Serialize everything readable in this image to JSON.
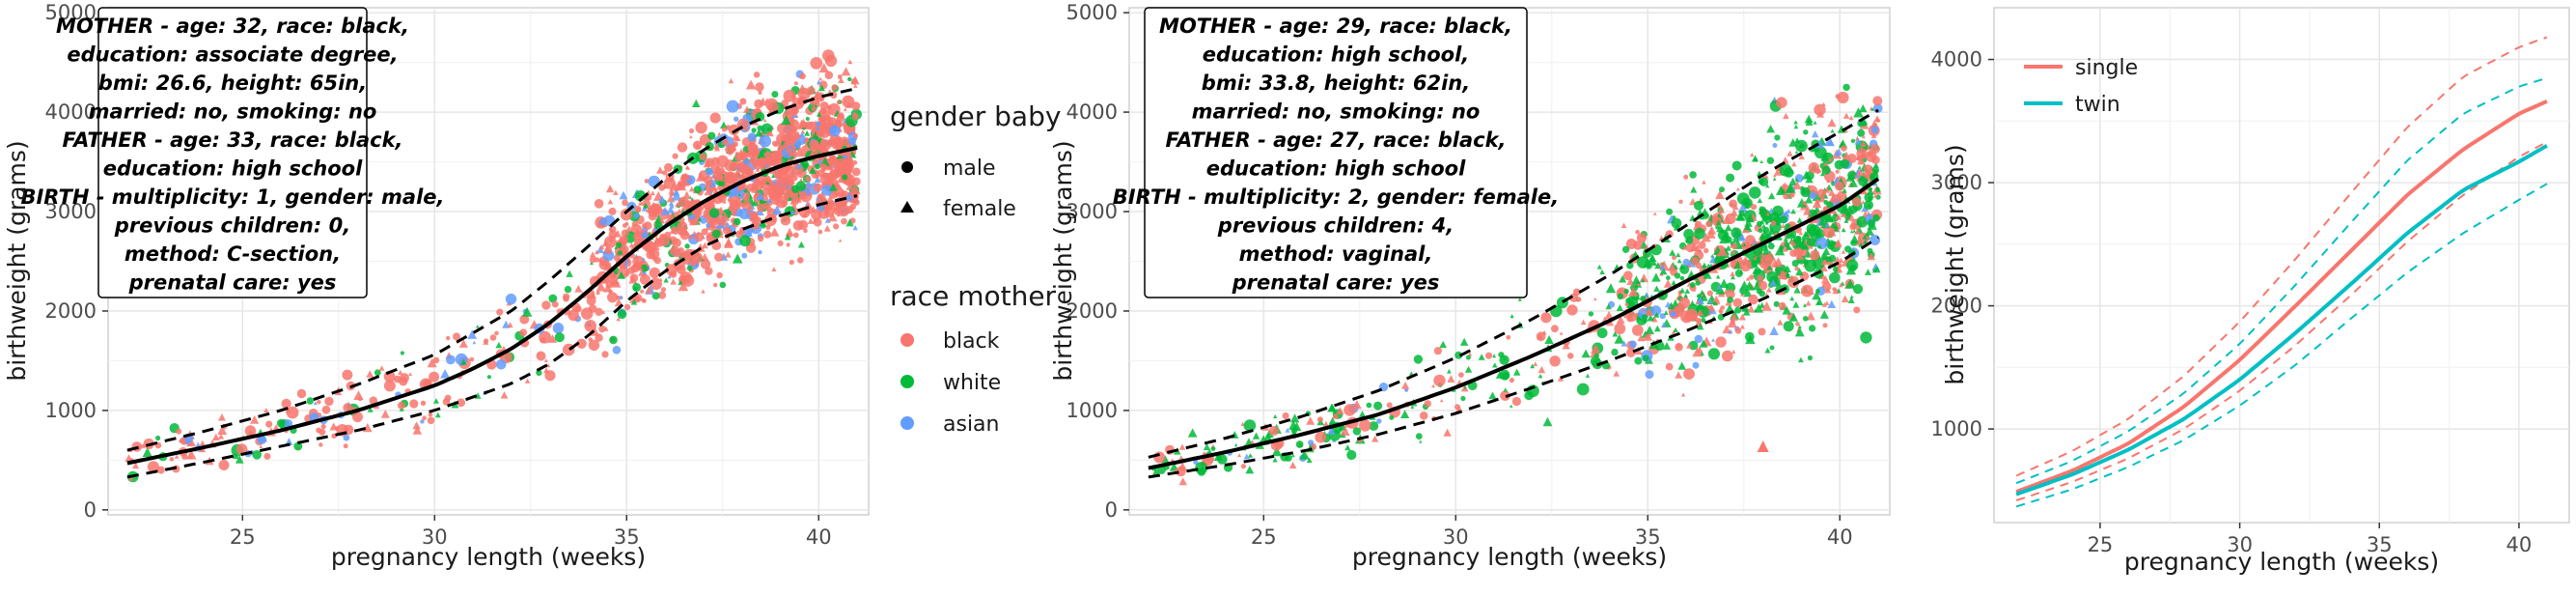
{
  "chart_data": [
    {
      "type": "scatter",
      "title": "",
      "xlabel": "pregnancy length (weeks)",
      "ylabel": "birthweight (grams)",
      "xlim": [
        21.5,
        41.3
      ],
      "ylim": [
        -50,
        5050
      ],
      "xticks": [
        25,
        30,
        35,
        40
      ],
      "yticks": [
        0,
        1000,
        2000,
        3000,
        4000,
        5000
      ],
      "grid": true,
      "annotation": [
        "MOTHER - age: 32, race: black,",
        "education: associate degree,",
        "bmi: 26.6, height: 65in,",
        "married: no, smoking: no",
        "FATHER - age: 33, race: black,",
        "education: high school",
        "BIRTH - multiplicity: 1, gender: male,",
        "previous children: 0,",
        "method: C-section,",
        "prenatal care: yes"
      ],
      "series": [
        {
          "style": "solid",
          "x": [
            22,
            24,
            26,
            28,
            30,
            31,
            32,
            33,
            34,
            35,
            36,
            37,
            38,
            39,
            40,
            41
          ],
          "values": [
            470,
            630,
            800,
            1000,
            1250,
            1420,
            1620,
            1880,
            2200,
            2550,
            2850,
            3100,
            3300,
            3460,
            3560,
            3640
          ]
        },
        {
          "style": "dashed",
          "x": [
            22,
            24,
            26,
            28,
            30,
            32,
            33,
            34,
            35,
            36,
            37,
            38,
            39,
            40,
            41
          ],
          "values": [
            600,
            790,
            1000,
            1260,
            1560,
            2000,
            2310,
            2650,
            3000,
            3330,
            3620,
            3850,
            4020,
            4150,
            4240
          ]
        },
        {
          "style": "dashed",
          "x": [
            22,
            24,
            26,
            28,
            30,
            32,
            33,
            34,
            35,
            36,
            37,
            38,
            39,
            40,
            41
          ],
          "values": [
            330,
            480,
            640,
            800,
            1000,
            1270,
            1470,
            1750,
            2100,
            2400,
            2650,
            2820,
            2960,
            3070,
            3160
          ]
        }
      ]
    },
    {
      "type": "scatter",
      "title": "",
      "xlabel": "pregnancy length (weeks)",
      "ylabel": "birthweight (grams)",
      "xlim": [
        21.5,
        41.3
      ],
      "ylim": [
        -50,
        5050
      ],
      "xticks": [
        25,
        30,
        35,
        40
      ],
      "yticks": [
        0,
        1000,
        2000,
        3000,
        4000,
        5000
      ],
      "grid": true,
      "annotation": [
        "MOTHER - age: 29, race: black,",
        "education: high school,",
        "bmi: 33.8, height: 62in,",
        "married: no, smoking: no",
        "FATHER - age: 27, race: black,",
        "education: high school",
        "BIRTH - multiplicity: 2, gender: female,",
        "previous children: 4,",
        "method: vaginal,",
        "prenatal care: yes"
      ],
      "series": [
        {
          "style": "solid",
          "x": [
            22,
            24,
            26,
            28,
            30,
            32,
            34,
            36,
            38,
            40,
            41
          ],
          "values": [
            420,
            580,
            760,
            960,
            1230,
            1550,
            1900,
            2300,
            2680,
            3060,
            3330
          ]
        },
        {
          "style": "dashed",
          "x": [
            22,
            24,
            26,
            28,
            30,
            32,
            34,
            36,
            38,
            40,
            41
          ],
          "values": [
            530,
            720,
            940,
            1200,
            1530,
            1920,
            2360,
            2860,
            3370,
            3800,
            4020
          ]
        },
        {
          "style": "dashed",
          "x": [
            22,
            24,
            26,
            28,
            30,
            32,
            34,
            36,
            38,
            40,
            41
          ],
          "values": [
            330,
            450,
            590,
            760,
            970,
            1230,
            1500,
            1800,
            2120,
            2490,
            2740
          ]
        }
      ],
      "outliers": [
        {
          "x": 38,
          "y": 630
        }
      ]
    },
    {
      "type": "line",
      "title": "",
      "xlabel": "pregnancy length (weeks)",
      "ylabel": "birthweight (grams)",
      "xlim": [
        21.2,
        41.8
      ],
      "ylim": [
        240,
        4420
      ],
      "xticks": [
        25,
        30,
        35,
        40
      ],
      "yticks": [
        1000,
        2000,
        3000,
        4000
      ],
      "grid": true,
      "legend": "top-left",
      "series": [
        {
          "name": "single",
          "color": "#F8766D",
          "style": "solid",
          "x": [
            22,
            24,
            26,
            28,
            30,
            32,
            34,
            36,
            38,
            40,
            41
          ],
          "values": [
            490,
            660,
            880,
            1180,
            1560,
            2000,
            2450,
            2900,
            3270,
            3560,
            3660
          ]
        },
        {
          "name": "single",
          "color": "#F8766D",
          "style": "dashed",
          "x": [
            22,
            24,
            26,
            28,
            30,
            32,
            34,
            36,
            38,
            40,
            41
          ],
          "values": [
            620,
            820,
            1080,
            1430,
            1870,
            2380,
            2920,
            3450,
            3860,
            4100,
            4180
          ]
        },
        {
          "name": "single",
          "color": "#F8766D",
          "style": "dashed",
          "x": [
            22,
            24,
            26,
            28,
            30,
            32,
            34,
            36,
            38,
            40,
            41
          ],
          "values": [
            420,
            570,
            760,
            1000,
            1310,
            1680,
            2090,
            2520,
            2900,
            3210,
            3330
          ]
        },
        {
          "name": "twin",
          "color": "#00BFC4",
          "style": "solid",
          "x": [
            22,
            24,
            26,
            28,
            30,
            32,
            34,
            36,
            38,
            40,
            41
          ],
          "values": [
            470,
            630,
            830,
            1080,
            1400,
            1780,
            2180,
            2590,
            2940,
            3170,
            3300
          ]
        },
        {
          "name": "twin",
          "color": "#00BFC4",
          "style": "dashed",
          "x": [
            22,
            24,
            26,
            28,
            30,
            32,
            34,
            36,
            38,
            40,
            41
          ],
          "values": [
            560,
            740,
            980,
            1290,
            1690,
            2170,
            2680,
            3180,
            3560,
            3780,
            3850
          ]
        },
        {
          "name": "twin",
          "color": "#00BFC4",
          "style": "dashed",
          "x": [
            22,
            24,
            26,
            28,
            30,
            32,
            34,
            36,
            38,
            40,
            41
          ],
          "values": [
            370,
            510,
            690,
            910,
            1190,
            1520,
            1900,
            2270,
            2590,
            2860,
            2990
          ]
        }
      ]
    }
  ],
  "legend": {
    "gender_title": "gender baby",
    "gender_items": [
      "male",
      "female"
    ],
    "race_title": "race mother",
    "race_items": [
      {
        "label": "black",
        "color": "#F8766D"
      },
      {
        "label": "white",
        "color": "#00BA38"
      },
      {
        "label": "asian",
        "color": "#619CFF"
      }
    ]
  },
  "line_legend": [
    {
      "label": "single",
      "color": "#F8766D"
    },
    {
      "label": "twin",
      "color": "#00BFC4"
    }
  ]
}
